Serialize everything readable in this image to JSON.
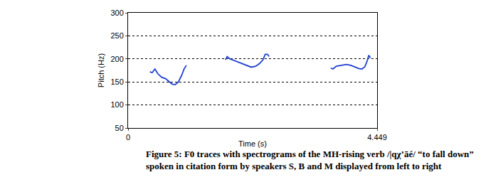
{
  "chart_data": {
    "type": "line",
    "caption": [
      "Figure 5:  F0 traces with spectrograms of the MH-rising verb /|qχʼāé/ “to fall down”",
      "spoken in citation form by speakers S, B and M displayed from left to right"
    ],
    "x_label": "Time (s)",
    "y_label": "Pitch (Hz)",
    "xlim": [
      0,
      4.449
    ],
    "xticks": [
      0,
      4.449
    ],
    "ylim": [
      50,
      300
    ],
    "yticks": [
      50,
      100,
      150,
      200,
      250,
      300
    ],
    "grid": true,
    "series": [
      {
        "color": "#1f3fd0",
        "x": [
          0.39,
          0.43,
          0.48,
          0.53,
          0.6,
          0.67,
          0.74,
          0.79,
          0.84,
          0.9,
          0.96,
          1.0,
          1.04
        ],
        "values": [
          172,
          170,
          178,
          168,
          160,
          157,
          150,
          145,
          144,
          150,
          165,
          178,
          186
        ]
      },
      {
        "color": "#1f3fd0",
        "x": [
          1.74,
          1.77,
          1.82,
          1.9,
          2.0,
          2.1,
          2.2,
          2.28,
          2.35,
          2.41,
          2.45,
          2.49,
          2.52
        ],
        "values": [
          198,
          205,
          200,
          196,
          192,
          186,
          182,
          184,
          190,
          198,
          210,
          210,
          205
        ]
      },
      {
        "color": "#1f3fd0",
        "x": [
          3.62,
          3.66,
          3.72,
          3.8,
          3.9,
          3.98,
          4.06,
          4.12,
          4.18,
          4.23,
          4.27,
          4.3,
          4.33
        ],
        "values": [
          180,
          178,
          184,
          186,
          188,
          186,
          182,
          179,
          178,
          183,
          195,
          208,
          202
        ]
      }
    ]
  }
}
